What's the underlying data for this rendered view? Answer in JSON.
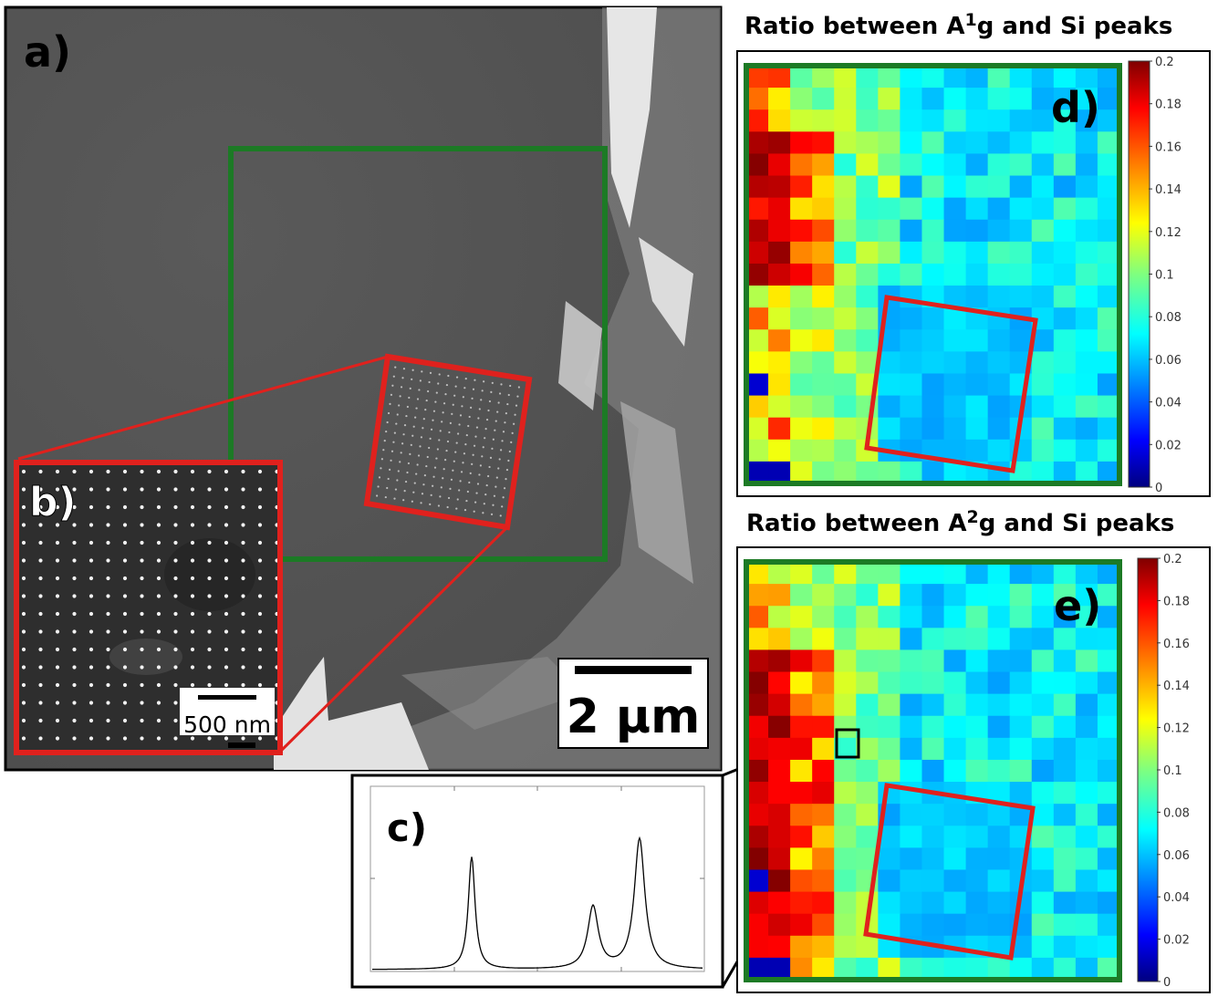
{
  "panels": {
    "a": {
      "label": "a)",
      "scale_bar_text": "2 μm"
    },
    "b": {
      "label": "b)",
      "scale_bar_text": "500 nm"
    },
    "c": {
      "label": "c)"
    },
    "d": {
      "label": "d)",
      "title_prefix": "Ratio between A",
      "title_sup": "1",
      "title_sub": "g",
      "title_suffix": " and Si peaks",
      "colorbar_ticks": [
        "0.2",
        "0.18",
        "0.16",
        "0.14",
        "0.12",
        "0.1",
        "0.08",
        "0.06",
        "0.04",
        "0.02",
        "0"
      ]
    },
    "e": {
      "label": "e)",
      "title_prefix": "Ratio between A",
      "title_sup": "2",
      "title_sub": "g",
      "title_suffix": " and Si peaks",
      "colorbar_ticks": [
        "0.2",
        "0.18",
        "0.16",
        "0.14",
        "0.12",
        "0.1",
        "0.08",
        "0.06",
        "0.04",
        "0.02",
        "0"
      ]
    }
  },
  "colors": {
    "green_frame": "#1c7a25",
    "red_frame": "#e0211d",
    "sem_background": "#5c5c5c"
  }
}
